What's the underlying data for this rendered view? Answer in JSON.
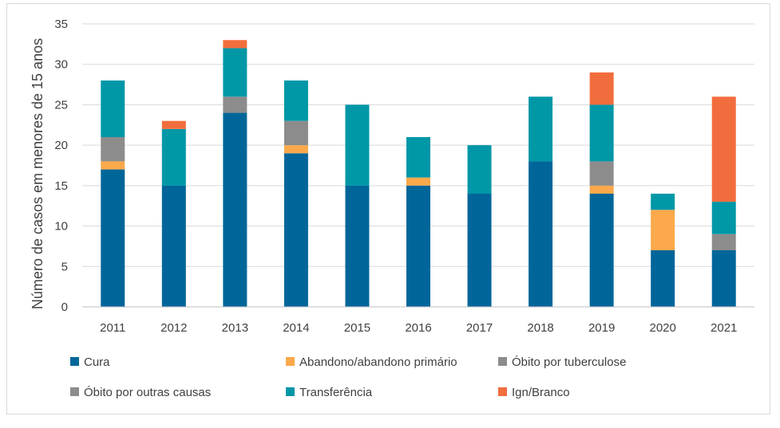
{
  "chart_data": {
    "type": "bar",
    "stacked": true,
    "title": "",
    "xlabel": "",
    "ylabel": "Número de casos em menores de 15 anos",
    "ylim": [
      0,
      35
    ],
    "yticks": [
      0,
      5,
      10,
      15,
      20,
      25,
      30,
      35
    ],
    "grid": true,
    "legend_position": "bottom",
    "categories": [
      "2011",
      "2012",
      "2013",
      "2014",
      "2015",
      "2016",
      "2017",
      "2018",
      "2019",
      "2020",
      "2021"
    ],
    "series": [
      {
        "name": "Cura",
        "color": "#00669a",
        "values": [
          17,
          15,
          24,
          19,
          15,
          15,
          14,
          18,
          14,
          7,
          7
        ]
      },
      {
        "name": "Abandono/abandono primário",
        "color": "#fba94b",
        "values": [
          1,
          0,
          0,
          1,
          0,
          1,
          0,
          0,
          1,
          5,
          0
        ]
      },
      {
        "name": "Óbito por tuberculose",
        "color": "#8c8c8c",
        "values": [
          3,
          0,
          2,
          3,
          0,
          0,
          0,
          0,
          3,
          0,
          2
        ]
      },
      {
        "name": "Óbito por outras causas",
        "color": "#8c8c8c",
        "values": [
          0,
          0,
          0,
          0,
          0,
          0,
          0,
          0,
          0,
          0,
          0
        ]
      },
      {
        "name": "Transferência",
        "color": "#0097a7",
        "values": [
          7,
          7,
          6,
          5,
          10,
          5,
          6,
          8,
          7,
          2,
          4
        ]
      },
      {
        "name": "Ign/Branco",
        "color": "#f26d3d",
        "values": [
          0,
          1,
          1,
          0,
          0,
          0,
          0,
          0,
          4,
          0,
          13
        ]
      }
    ]
  }
}
